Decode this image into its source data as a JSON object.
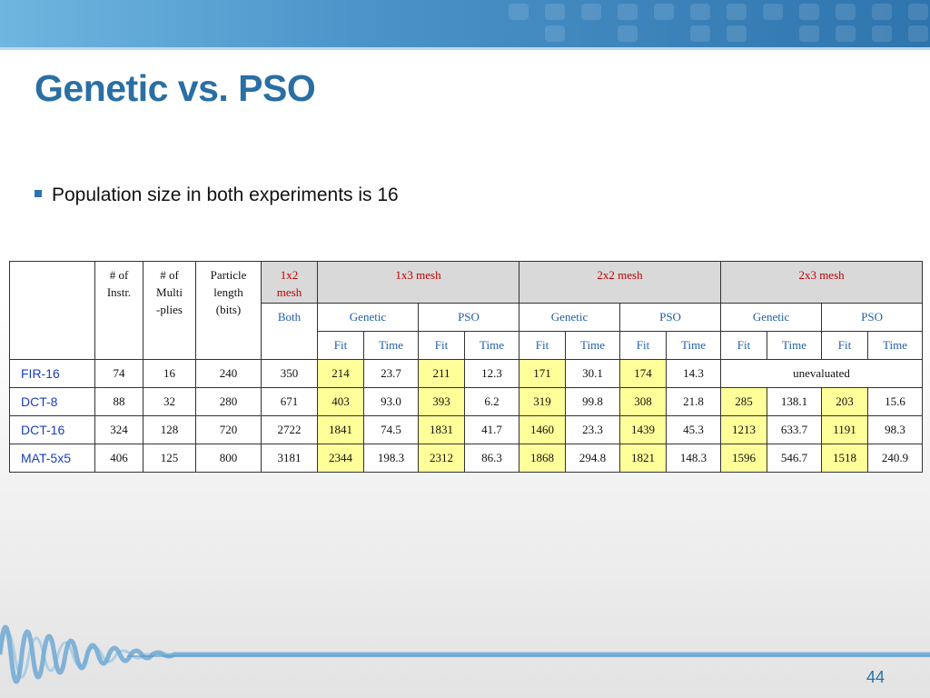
{
  "slide": {
    "title": "Genetic vs. PSO",
    "bullet": "Population size in both experiments is 16",
    "page_number": "44"
  },
  "table": {
    "headers": {
      "instr": [
        "# of",
        "Instr."
      ],
      "multiplies": [
        "# of",
        "Multi",
        "-plies"
      ],
      "particle": [
        "Particle",
        "length",
        "(bits)"
      ],
      "mesh1x2": [
        "1x2",
        "mesh"
      ],
      "mesh1x3": "1x3 mesh",
      "mesh2x2": "2x2 mesh",
      "mesh2x3": "2x3 mesh",
      "both": "Both",
      "genetic": "Genetic",
      "pso": "PSO",
      "fit": "Fit",
      "time": "Time"
    },
    "rows": [
      {
        "name": "FIR-16",
        "instr": "74",
        "mult": "16",
        "bits": "240",
        "m12": "350",
        "vals": [
          "214",
          "23.7",
          "211",
          "12.3",
          "171",
          "30.1",
          "174",
          "14.3"
        ],
        "unevaluated": "unevaluated"
      },
      {
        "name": "DCT-8",
        "instr": "88",
        "mult": "32",
        "bits": "280",
        "m12": "671",
        "vals": [
          "403",
          "93.0",
          "393",
          "6.2",
          "319",
          "99.8",
          "308",
          "21.8",
          "285",
          "138.1",
          "203",
          "15.6"
        ]
      },
      {
        "name": "DCT-16",
        "instr": "324",
        "mult": "128",
        "bits": "720",
        "m12": "2722",
        "vals": [
          "1841",
          "74.5",
          "1831",
          "41.7",
          "1460",
          "23.3",
          "1439",
          "45.3",
          "1213",
          "633.7",
          "1191",
          "98.3"
        ]
      },
      {
        "name": "MAT-5x5",
        "instr": "406",
        "mult": "125",
        "bits": "800",
        "m12": "3181",
        "vals": [
          "2344",
          "198.3",
          "2312",
          "86.3",
          "1868",
          "294.8",
          "1821",
          "148.3",
          "1596",
          "546.7",
          "1518",
          "240.9"
        ]
      }
    ]
  },
  "colors": {
    "title": "#2a6fa3",
    "mesh_header": "#c00000",
    "subheader": "#1f5fa8",
    "fit_highlight": "#ffff99",
    "row_label": "#1a3fc0"
  }
}
